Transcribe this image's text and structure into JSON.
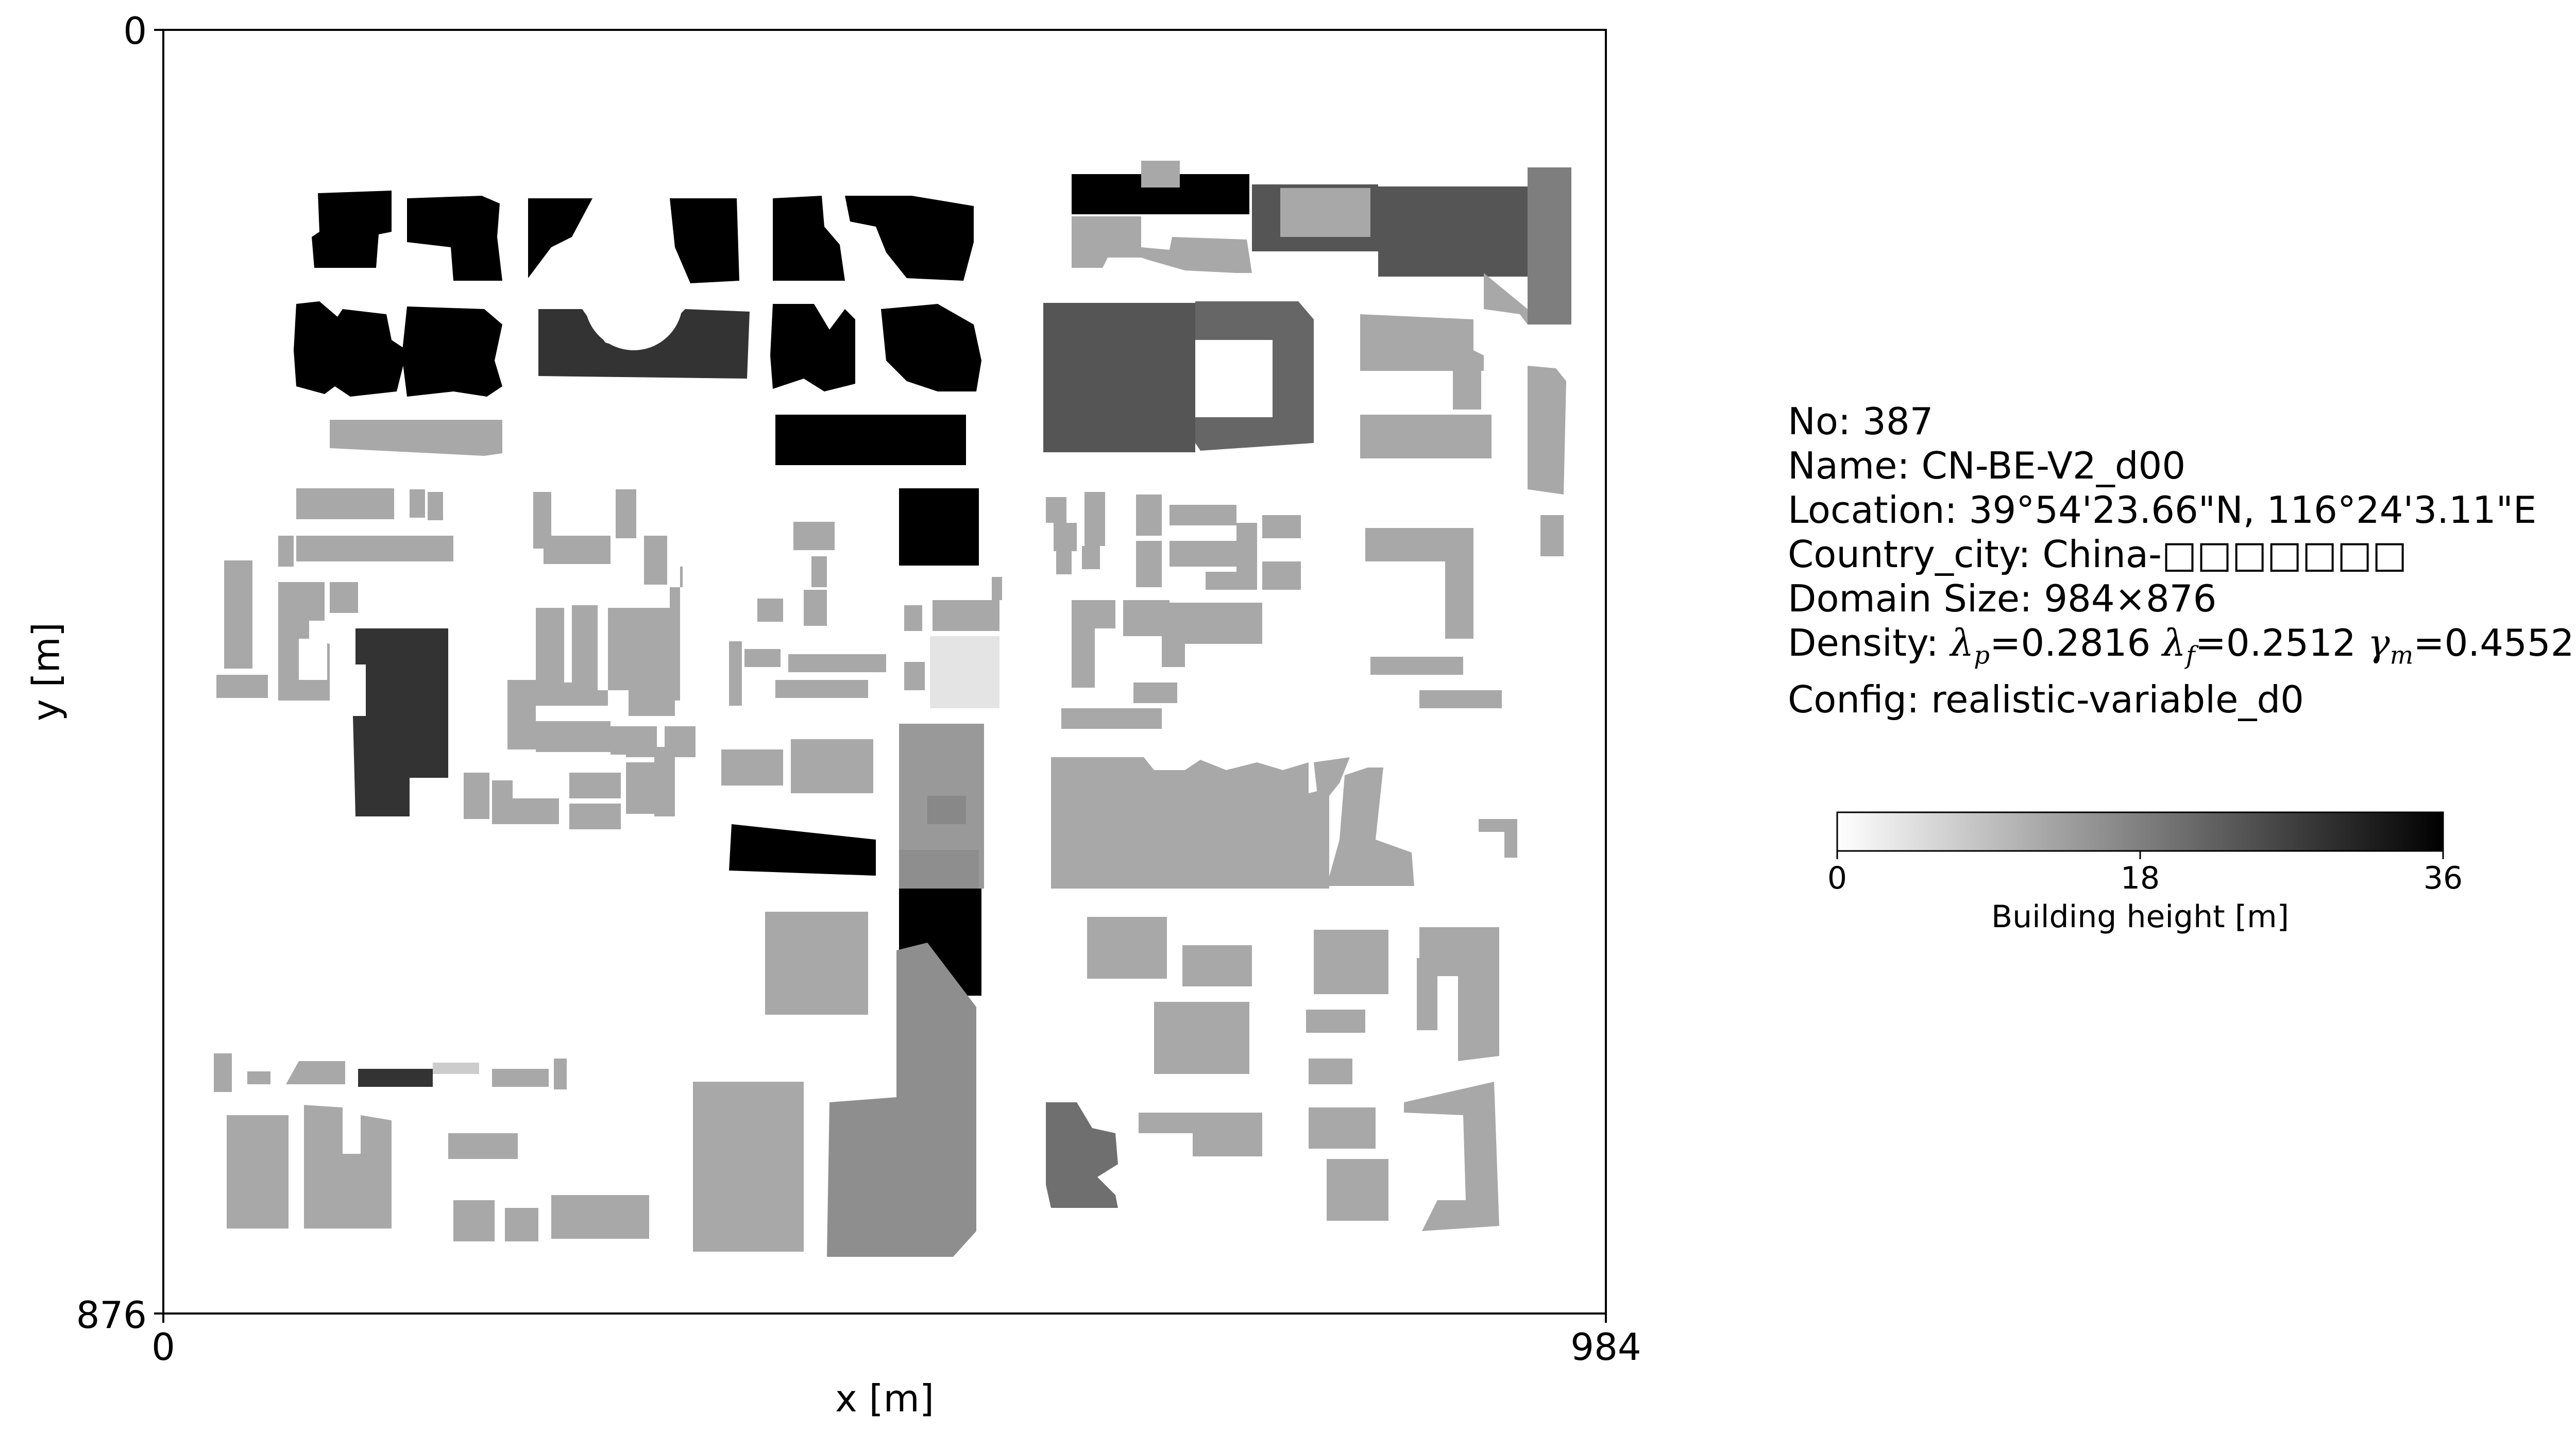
{
  "map": {
    "x_axis": {
      "label": "x [m]",
      "ticks": [
        "0",
        "984"
      ]
    },
    "y_axis": {
      "label": "y [m]",
      "ticks": [
        "0",
        "876"
      ]
    },
    "domain_m": {
      "x": [
        0,
        984
      ],
      "y": [
        0,
        876
      ]
    },
    "colormap": "gray_r (white = 0 m, black = 36 m)"
  },
  "info": {
    "no": "No: 387",
    "name": "Name: CN-BE-V2_d00",
    "location": "Location: 39°54'23.66\"N, 116°24'3.11\"E",
    "country_city": "Country_city: China-□□□□□□□",
    "domain_size": "Domain Size: 984×876",
    "density_prefix": "Density: ",
    "lambda_p_sym": "λ",
    "lambda_p_sub": "p",
    "lambda_p_val": "=0.2816 ",
    "lambda_f_sym": "λ",
    "lambda_f_sub": "f",
    "lambda_f_val": "=0.2512 ",
    "gamma_m_sym": "γ",
    "gamma_m_sub": "m",
    "gamma_m_val": "=0.4552",
    "config": "Config: realistic-variable_d0"
  },
  "colorbar": {
    "label": "Building height [m]",
    "ticks": [
      "0",
      "18",
      "36"
    ],
    "min": 0,
    "max": 36
  },
  "colors": {
    "frame": "#000000",
    "background": "#ffffff",
    "height_36": "#000000",
    "height_26": "#333333",
    "height_21": "#555555",
    "height_17": "#6e6e6e",
    "height_14": "#8a8a8a",
    "height_12": "#9a9a9a",
    "height_10": "#a9a9a9",
    "height_7": "#c8c8c8",
    "height_4": "#e2e2e2"
  }
}
